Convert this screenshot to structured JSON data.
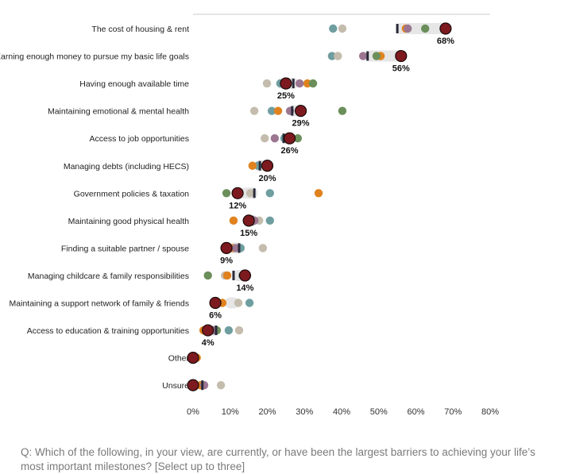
{
  "chart_data": {
    "type": "dot",
    "xlim": [
      0,
      80
    ],
    "x_tick_labels": [
      "0%",
      "10%",
      "20%",
      "30%",
      "40%",
      "50%",
      "60%",
      "70%",
      "80%"
    ],
    "x_ticks": [
      0,
      10,
      20,
      30,
      40,
      50,
      60,
      70,
      80
    ],
    "grid": false,
    "legend": "none",
    "colors": {
      "main": "#7d1a1f",
      "teal": "#6f9ea0",
      "beige": "#c4bcad",
      "orange": "#e0821e",
      "green": "#6b8f5a",
      "purple": "#9c7690",
      "marker": "#2a2a3a",
      "band": "#e6e6e6"
    },
    "categories": [
      "The cost of housing & rent",
      "Earning enough money to pursue my basic life goals",
      "Having enough available time",
      "Maintaining emotional & mental health",
      "Access to job opportunities",
      "Managing debts (including HECS)",
      "Government policies & taxation",
      "Maintaining good physical health",
      "Finding a suitable partner / spouse",
      "Managing childcare & family responsibilities",
      "Maintaining a support network of family & friends",
      "Access to education & training opportunities",
      "Other",
      "Unsure"
    ],
    "data_labels": [
      "68%",
      "56%",
      "25%",
      "29%",
      "26%",
      "20%",
      "12%",
      "15%",
      "9%",
      "14%",
      "6%",
      "4%",
      "",
      ""
    ],
    "main": [
      68,
      56,
      25,
      29,
      26,
      20,
      12,
      15,
      9,
      14,
      6,
      4,
      0,
      0
    ],
    "marker": [
      55,
      47,
      27,
      26.7,
      24.4,
      18,
      16.5,
      16,
      12.4,
      10.9,
      null,
      6.2,
      0.3,
      2.5
    ],
    "band": [
      [
        55,
        69
      ],
      [
        47,
        57
      ],
      [
        23,
        28
      ],
      [
        26,
        30
      ],
      [
        24,
        27
      ],
      [
        17,
        20
      ],
      [
        13,
        17
      ],
      [
        15,
        17
      ],
      [
        10,
        13
      ],
      [
        11,
        15
      ],
      [
        9,
        12
      ],
      [
        5,
        6
      ],
      null,
      null
    ],
    "series": [
      {
        "color": "teal",
        "values": [
          37.7,
          37.4,
          23.5,
          21.2,
          24.6,
          17.5,
          20.7,
          20.7,
          12.8,
          13.3,
          15.2,
          9.6,
          null,
          null
        ]
      },
      {
        "color": "beige",
        "values": [
          40.2,
          39,
          19.9,
          16.5,
          19.3,
          null,
          15.4,
          17.8,
          18.8,
          8.6,
          12.2,
          12.4,
          null,
          7.5
        ]
      },
      {
        "color": "orange",
        "values": [
          57.3,
          50.5,
          30.8,
          22.9,
          null,
          16,
          33.8,
          10.9,
          10.5,
          9.2,
          7.9,
          2.8,
          1,
          2
        ]
      },
      {
        "color": "green",
        "values": [
          62.5,
          49.4,
          32.3,
          40.2,
          28.2,
          null,
          9,
          null,
          null,
          4,
          null,
          6.4,
          null,
          null
        ]
      },
      {
        "color": "purple",
        "values": [
          57.8,
          45.8,
          28.7,
          26.1,
          22,
          null,
          null,
          16.5,
          11.5,
          null,
          null,
          5.5,
          0.5,
          3
        ]
      }
    ]
  },
  "question": "Q: Which of the following, in your view, are currently, or have been the largest barriers to achieving your life’s most important milestones? [Select up to three]"
}
